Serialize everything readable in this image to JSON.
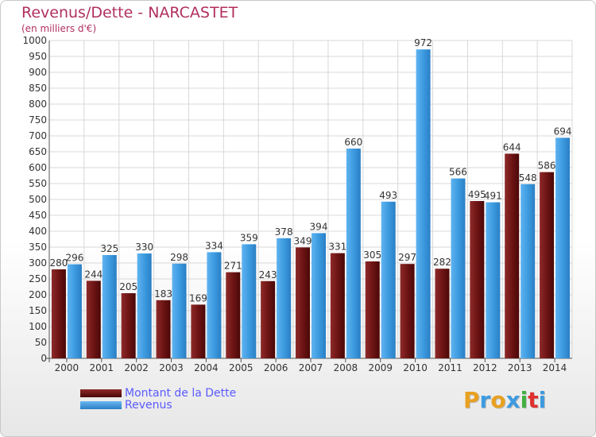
{
  "chart_data": {
    "type": "bar",
    "title": "Revenus/Dette - NARCASTET",
    "subtitle": "(en milliers d'€)",
    "categories": [
      "2000",
      "2001",
      "2002",
      "2003",
      "2004",
      "2005",
      "2006",
      "2007",
      "2008",
      "2009",
      "2010",
      "2011",
      "2012",
      "2013",
      "2014"
    ],
    "series": [
      {
        "name": "Montant de la Dette",
        "color": "#6e1414",
        "values": [
          280,
          244,
          205,
          183,
          169,
          271,
          243,
          349,
          331,
          305,
          297,
          282,
          495,
          644,
          586
        ]
      },
      {
        "name": "Revenus",
        "color": "#3d9be0",
        "values": [
          296,
          325,
          330,
          298,
          334,
          359,
          378,
          394,
          660,
          493,
          972,
          566,
          491,
          548,
          694
        ]
      }
    ],
    "ylim": [
      0,
      1000
    ],
    "ytick_step": 50,
    "grid": true,
    "legend_position": "bottom-left"
  },
  "logo": {
    "letters": [
      "P",
      "r",
      "o",
      "x",
      "i",
      "t",
      "i"
    ],
    "colors": [
      "#e8a020",
      "#3d9be0",
      "#e8a020",
      "#3d9be0",
      "#40b040",
      "#e03030",
      "#3d9be0"
    ]
  }
}
